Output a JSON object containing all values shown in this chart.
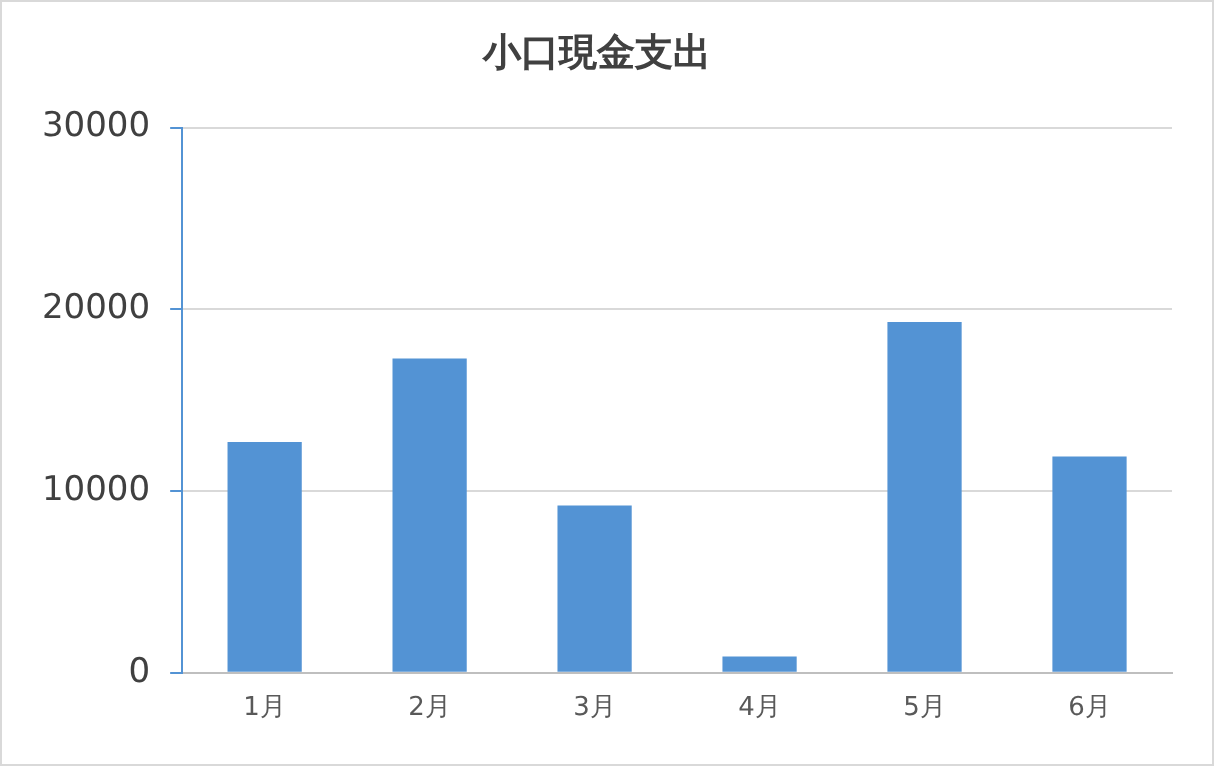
{
  "chart_data": {
    "type": "bar",
    "title": "小口現金支出",
    "categories": [
      "1月",
      "2月",
      "3月",
      "4月",
      "5月",
      "6月"
    ],
    "values": [
      12700,
      17300,
      9200,
      900,
      19300,
      11900
    ],
    "color": "#5393d4",
    "ylim": [
      0,
      30000
    ],
    "yticks": [
      0,
      10000,
      20000,
      30000
    ],
    "grid": "y"
  }
}
